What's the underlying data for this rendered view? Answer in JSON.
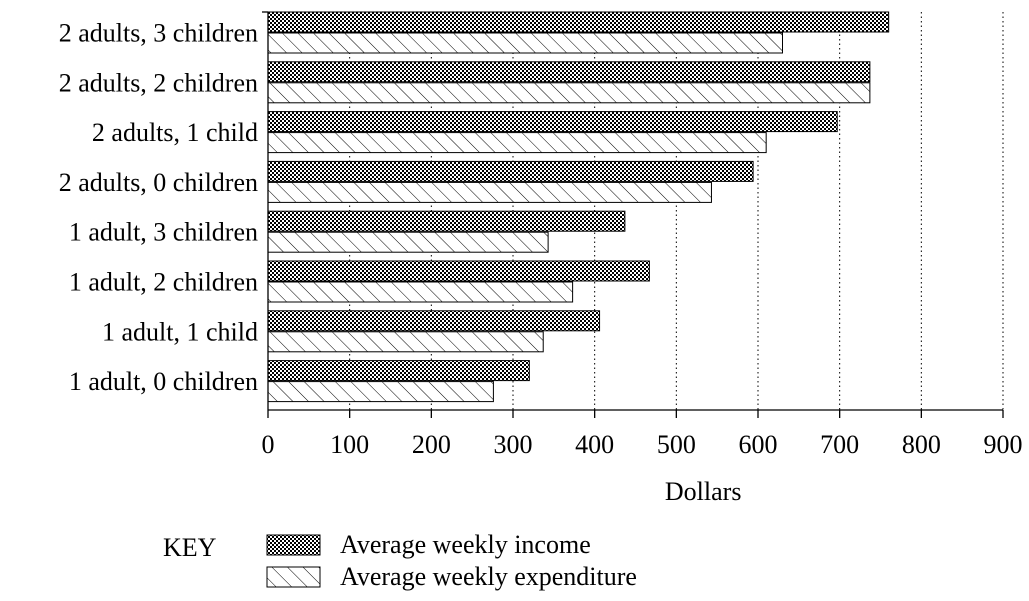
{
  "chart_data": {
    "type": "bar",
    "orientation": "horizontal",
    "categories": [
      "2 adults, 3 children",
      "2 adults, 2 children",
      "2 adults, 1 child",
      "2 adults, 0 children",
      "1 adult, 3 children",
      "1 adult, 2 children",
      "1 adult, 1 child",
      "1 adult, 0 children"
    ],
    "series": [
      {
        "name": "Average weekly income",
        "pattern": "crosshatch",
        "values": [
          760,
          737,
          697,
          594,
          437,
          467,
          406,
          320
        ]
      },
      {
        "name": "Average weekly expenditure",
        "pattern": "diagonal",
        "values": [
          630,
          737,
          610,
          543,
          343,
          373,
          337,
          276
        ]
      }
    ],
    "xlabel": "Dollars",
    "xlim": [
      0,
      900
    ],
    "xticks": [
      0,
      100,
      200,
      300,
      400,
      500,
      600,
      700,
      800,
      900
    ],
    "grid": "vertical dotted",
    "legend_title": "KEY",
    "legend_position": "bottom",
    "colors": {
      "bar_fill": "#ffffff",
      "bar_stroke": "#000000",
      "grid": "#000000"
    }
  }
}
